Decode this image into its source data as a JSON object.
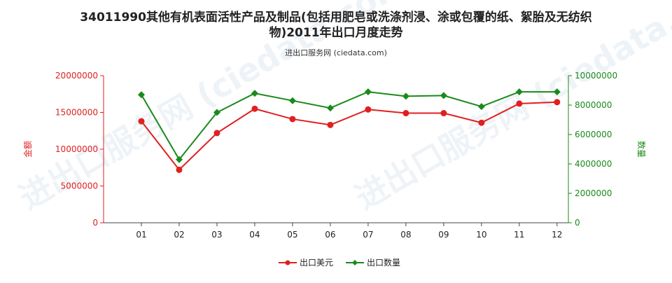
{
  "chart_data": {
    "type": "line",
    "title_line1": "34011990其他有机表面活性产品及制品(包括用肥皂或洗涤剂浸、涂或包覆的纸、絮胎及无纺织",
    "title_line2": "物)2011年出口月度走势",
    "subtitle": "进出口服务网 (ciedata.com)",
    "categories": [
      "01",
      "02",
      "03",
      "04",
      "05",
      "06",
      "07",
      "08",
      "09",
      "10",
      "11",
      "12"
    ],
    "left_axis": {
      "label": "金额",
      "ticks": [
        "0",
        "5000000",
        "10000000",
        "15000000",
        "20000000"
      ],
      "ylim": [
        0,
        20000000
      ],
      "color": "#e02020"
    },
    "right_axis": {
      "label": "数量",
      "ticks": [
        "0",
        "2000000",
        "4000000",
        "6000000",
        "8000000",
        "10000000"
      ],
      "ylim": [
        0,
        10000000
      ],
      "color": "#1a8a1a"
    },
    "series": [
      {
        "name": "出口美元",
        "axis": "left",
        "color": "#e02020",
        "marker": "circle",
        "values": [
          13800000,
          7200000,
          12200000,
          15500000,
          14100000,
          13300000,
          15400000,
          14900000,
          14900000,
          13600000,
          16200000,
          16400000
        ]
      },
      {
        "name": "出口数量",
        "axis": "right",
        "color": "#1a8a1a",
        "marker": "diamond",
        "values": [
          8700000,
          4300000,
          7500000,
          8800000,
          8300000,
          7800000,
          8900000,
          8600000,
          8650000,
          7900000,
          8900000,
          8900000
        ]
      }
    ],
    "legend_position": "bottom-center",
    "grid": false
  }
}
